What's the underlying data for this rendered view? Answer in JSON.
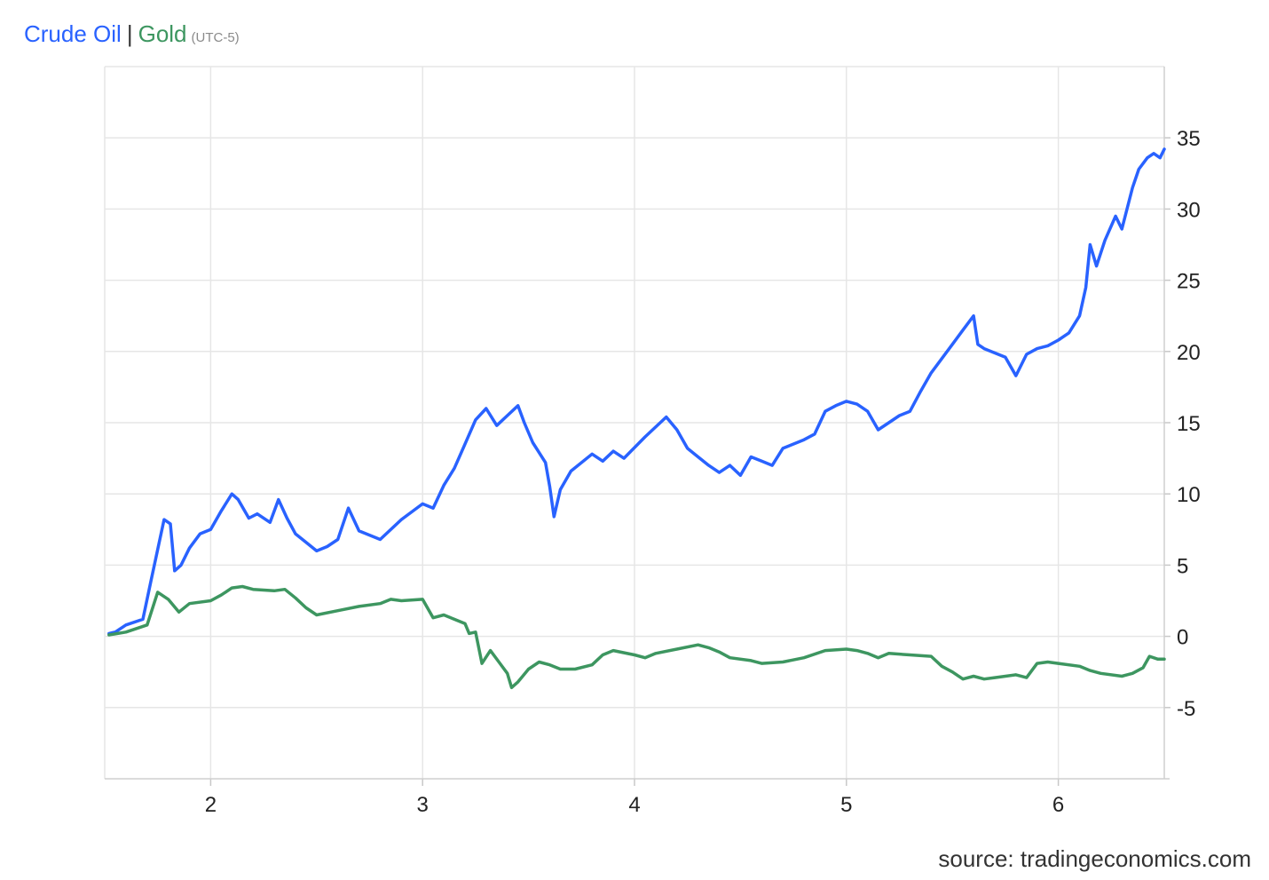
{
  "legend": {
    "series1": "Crude Oil",
    "separator": "|",
    "series2": "Gold",
    "timezone": "(UTC-5)"
  },
  "source": "source: tradingeconomics.com",
  "colors": {
    "crude_oil": "#2962ff",
    "gold": "#3d9660",
    "grid": "#e6e6e6"
  },
  "chart_data": {
    "type": "line",
    "title": "",
    "xlabel": "",
    "ylabel": "",
    "xlim": [
      1.5,
      6.5
    ],
    "ylim": [
      -10,
      40
    ],
    "x_ticks": [
      2,
      3,
      4,
      5,
      6
    ],
    "y_ticks": [
      -5,
      0,
      5,
      10,
      15,
      20,
      25,
      30,
      35
    ],
    "y_axis_position": "right",
    "grid": true,
    "legend": "top-left",
    "series": [
      {
        "name": "Crude Oil",
        "color": "#2962ff",
        "points": [
          [
            1.52,
            0.2
          ],
          [
            1.55,
            0.3
          ],
          [
            1.6,
            0.8
          ],
          [
            1.68,
            1.2
          ],
          [
            1.72,
            4.0
          ],
          [
            1.78,
            8.2
          ],
          [
            1.81,
            7.9
          ],
          [
            1.83,
            4.6
          ],
          [
            1.86,
            5.0
          ],
          [
            1.9,
            6.2
          ],
          [
            1.95,
            7.2
          ],
          [
            2.0,
            7.5
          ],
          [
            2.05,
            8.8
          ],
          [
            2.1,
            10.0
          ],
          [
            2.13,
            9.6
          ],
          [
            2.18,
            8.3
          ],
          [
            2.22,
            8.6
          ],
          [
            2.28,
            8.0
          ],
          [
            2.32,
            9.6
          ],
          [
            2.36,
            8.3
          ],
          [
            2.4,
            7.2
          ],
          [
            2.45,
            6.6
          ],
          [
            2.5,
            6.0
          ],
          [
            2.55,
            6.3
          ],
          [
            2.6,
            6.8
          ],
          [
            2.65,
            9.0
          ],
          [
            2.7,
            7.4
          ],
          [
            2.8,
            6.8
          ],
          [
            2.9,
            8.2
          ],
          [
            3.0,
            9.3
          ],
          [
            3.05,
            9.0
          ],
          [
            3.1,
            10.6
          ],
          [
            3.15,
            11.8
          ],
          [
            3.2,
            13.5
          ],
          [
            3.25,
            15.2
          ],
          [
            3.3,
            16.0
          ],
          [
            3.35,
            14.8
          ],
          [
            3.4,
            15.5
          ],
          [
            3.45,
            16.2
          ],
          [
            3.48,
            15.0
          ],
          [
            3.52,
            13.6
          ],
          [
            3.58,
            12.2
          ],
          [
            3.6,
            10.5
          ],
          [
            3.62,
            8.4
          ],
          [
            3.65,
            10.3
          ],
          [
            3.7,
            11.6
          ],
          [
            3.8,
            12.8
          ],
          [
            3.85,
            12.3
          ],
          [
            3.9,
            13.0
          ],
          [
            3.95,
            12.5
          ],
          [
            4.05,
            14.0
          ],
          [
            4.15,
            15.4
          ],
          [
            4.2,
            14.5
          ],
          [
            4.25,
            13.2
          ],
          [
            4.3,
            12.6
          ],
          [
            4.35,
            12.0
          ],
          [
            4.4,
            11.5
          ],
          [
            4.45,
            12.0
          ],
          [
            4.5,
            11.3
          ],
          [
            4.55,
            12.6
          ],
          [
            4.6,
            12.3
          ],
          [
            4.65,
            12.0
          ],
          [
            4.7,
            13.2
          ],
          [
            4.8,
            13.8
          ],
          [
            4.85,
            14.2
          ],
          [
            4.9,
            15.8
          ],
          [
            4.95,
            16.2
          ],
          [
            5.0,
            16.5
          ],
          [
            5.05,
            16.3
          ],
          [
            5.1,
            15.8
          ],
          [
            5.15,
            14.5
          ],
          [
            5.2,
            15.0
          ],
          [
            5.25,
            15.5
          ],
          [
            5.3,
            15.8
          ],
          [
            5.35,
            17.2
          ],
          [
            5.4,
            18.5
          ],
          [
            5.45,
            19.5
          ],
          [
            5.5,
            20.5
          ],
          [
            5.55,
            21.5
          ],
          [
            5.6,
            22.5
          ],
          [
            5.62,
            20.5
          ],
          [
            5.65,
            20.2
          ],
          [
            5.75,
            19.6
          ],
          [
            5.8,
            18.3
          ],
          [
            5.85,
            19.8
          ],
          [
            5.9,
            20.2
          ],
          [
            5.95,
            20.4
          ],
          [
            6.0,
            20.8
          ],
          [
            6.05,
            21.3
          ],
          [
            6.1,
            22.5
          ],
          [
            6.13,
            24.5
          ],
          [
            6.15,
            27.5
          ],
          [
            6.18,
            26.0
          ],
          [
            6.22,
            27.8
          ],
          [
            6.27,
            29.5
          ],
          [
            6.3,
            28.6
          ],
          [
            6.35,
            31.5
          ],
          [
            6.38,
            32.8
          ],
          [
            6.42,
            33.6
          ],
          [
            6.45,
            33.9
          ],
          [
            6.48,
            33.6
          ],
          [
            6.5,
            34.2
          ]
        ]
      },
      {
        "name": "Gold",
        "color": "#3d9660",
        "points": [
          [
            1.52,
            0.1
          ],
          [
            1.6,
            0.3
          ],
          [
            1.7,
            0.8
          ],
          [
            1.75,
            3.1
          ],
          [
            1.8,
            2.6
          ],
          [
            1.85,
            1.7
          ],
          [
            1.9,
            2.3
          ],
          [
            2.0,
            2.5
          ],
          [
            2.05,
            2.9
          ],
          [
            2.1,
            3.4
          ],
          [
            2.15,
            3.5
          ],
          [
            2.2,
            3.3
          ],
          [
            2.3,
            3.2
          ],
          [
            2.35,
            3.3
          ],
          [
            2.4,
            2.7
          ],
          [
            2.45,
            2.0
          ],
          [
            2.5,
            1.5
          ],
          [
            2.6,
            1.8
          ],
          [
            2.7,
            2.1
          ],
          [
            2.8,
            2.3
          ],
          [
            2.85,
            2.6
          ],
          [
            2.9,
            2.5
          ],
          [
            3.0,
            2.6
          ],
          [
            3.05,
            1.3
          ],
          [
            3.1,
            1.5
          ],
          [
            3.15,
            1.2
          ],
          [
            3.2,
            0.9
          ],
          [
            3.22,
            0.2
          ],
          [
            3.25,
            0.3
          ],
          [
            3.28,
            -1.9
          ],
          [
            3.32,
            -1.0
          ],
          [
            3.36,
            -1.8
          ],
          [
            3.4,
            -2.6
          ],
          [
            3.42,
            -3.6
          ],
          [
            3.45,
            -3.2
          ],
          [
            3.5,
            -2.3
          ],
          [
            3.55,
            -1.8
          ],
          [
            3.6,
            -2.0
          ],
          [
            3.65,
            -2.3
          ],
          [
            3.72,
            -2.3
          ],
          [
            3.8,
            -2.0
          ],
          [
            3.85,
            -1.3
          ],
          [
            3.9,
            -1.0
          ],
          [
            4.0,
            -1.3
          ],
          [
            4.05,
            -1.5
          ],
          [
            4.1,
            -1.2
          ],
          [
            4.2,
            -0.9
          ],
          [
            4.3,
            -0.6
          ],
          [
            4.35,
            -0.8
          ],
          [
            4.4,
            -1.1
          ],
          [
            4.45,
            -1.5
          ],
          [
            4.55,
            -1.7
          ],
          [
            4.6,
            -1.9
          ],
          [
            4.7,
            -1.8
          ],
          [
            4.8,
            -1.5
          ],
          [
            4.9,
            -1.0
          ],
          [
            5.0,
            -0.9
          ],
          [
            5.05,
            -1.0
          ],
          [
            5.1,
            -1.2
          ],
          [
            5.15,
            -1.5
          ],
          [
            5.2,
            -1.2
          ],
          [
            5.3,
            -1.3
          ],
          [
            5.4,
            -1.4
          ],
          [
            5.45,
            -2.1
          ],
          [
            5.5,
            -2.5
          ],
          [
            5.55,
            -3.0
          ],
          [
            5.6,
            -2.8
          ],
          [
            5.65,
            -3.0
          ],
          [
            5.7,
            -2.9
          ],
          [
            5.8,
            -2.7
          ],
          [
            5.85,
            -2.9
          ],
          [
            5.9,
            -1.9
          ],
          [
            5.95,
            -1.8
          ],
          [
            6.0,
            -1.9
          ],
          [
            6.1,
            -2.1
          ],
          [
            6.15,
            -2.4
          ],
          [
            6.2,
            -2.6
          ],
          [
            6.3,
            -2.8
          ],
          [
            6.35,
            -2.6
          ],
          [
            6.4,
            -2.2
          ],
          [
            6.43,
            -1.4
          ],
          [
            6.47,
            -1.6
          ],
          [
            6.5,
            -1.6
          ]
        ]
      }
    ]
  }
}
